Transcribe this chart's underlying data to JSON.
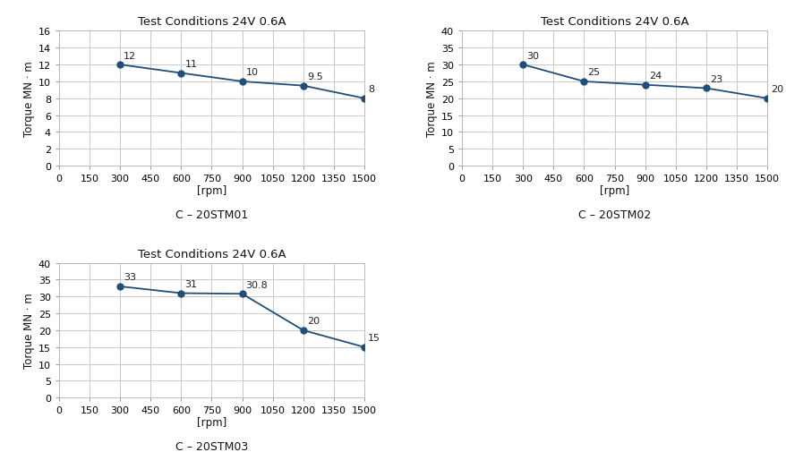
{
  "title": "Test Conditions 24V 0.6A",
  "xlabel": "[rpm]",
  "ylabel": "Torque MN · m",
  "line_color": "#1f4e79",
  "marker_color": "#1f4e79",
  "grid_color": "#c8c8c8",
  "background_color": "#ffffff",
  "title_fontsize": 9.5,
  "label_fontsize": 8.5,
  "tick_fontsize": 8,
  "annot_fontsize": 8,
  "subtitle_fontsize": 9,
  "charts": [
    {
      "subtitle": "C – 20STM01",
      "x": [
        300,
        600,
        900,
        1200,
        1500
      ],
      "y": [
        12,
        11,
        10,
        9.5,
        8
      ],
      "labels": [
        "12",
        "11",
        "10",
        "9.5",
        "8"
      ],
      "ylim": [
        0,
        16
      ],
      "yticks": [
        0,
        2,
        4,
        6,
        8,
        10,
        12,
        14,
        16
      ],
      "xticks": [
        0,
        150,
        300,
        450,
        600,
        750,
        900,
        1050,
        1200,
        1350,
        1500
      ],
      "xlim": [
        0,
        1500
      ]
    },
    {
      "subtitle": "C – 20STM02",
      "x": [
        300,
        600,
        900,
        1200,
        1500
      ],
      "y": [
        30,
        25,
        24,
        23,
        20
      ],
      "labels": [
        "30",
        "25",
        "24",
        "23",
        "20"
      ],
      "ylim": [
        0,
        40
      ],
      "yticks": [
        0,
        5,
        10,
        15,
        20,
        25,
        30,
        35,
        40
      ],
      "xticks": [
        0,
        150,
        300,
        450,
        600,
        750,
        900,
        1050,
        1200,
        1350,
        1500
      ],
      "xlim": [
        0,
        1500
      ]
    },
    {
      "subtitle": "C – 20STM03",
      "x": [
        300,
        600,
        900,
        1200,
        1500
      ],
      "y": [
        33,
        31,
        30.8,
        20,
        15
      ],
      "labels": [
        "33",
        "31",
        "30.8",
        "20",
        "15"
      ],
      "ylim": [
        0,
        40
      ],
      "yticks": [
        0,
        5,
        10,
        15,
        20,
        25,
        30,
        35,
        40
      ],
      "xticks": [
        0,
        150,
        300,
        450,
        600,
        750,
        900,
        1050,
        1200,
        1350,
        1500
      ],
      "xlim": [
        0,
        1500
      ]
    }
  ]
}
